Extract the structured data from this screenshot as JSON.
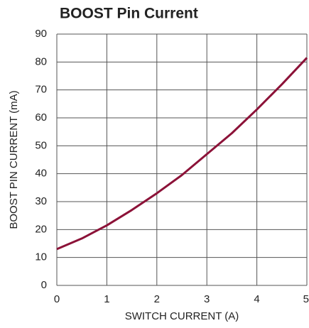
{
  "chart_data": {
    "type": "line",
    "title": "BOOST Pin Current",
    "xlabel": "SWITCH CURRENT (A)",
    "ylabel": "BOOST PIN CURRENT (mA)",
    "x": [
      0,
      0.5,
      1,
      1.5,
      2,
      2.5,
      3,
      3.5,
      4,
      4.5,
      5
    ],
    "series": [
      {
        "color": "#8c1238",
        "values": [
          13,
          16.8,
          21.5,
          27,
          33,
          39.5,
          47,
          54.5,
          63,
          72,
          81.5
        ]
      }
    ],
    "xlim": [
      0,
      5
    ],
    "xticks": [
      0,
      1,
      2,
      3,
      4,
      5
    ],
    "ylim": [
      0,
      90
    ],
    "yticks": [
      0,
      10,
      20,
      30,
      40,
      50,
      60,
      70,
      80,
      90
    ],
    "grid": true
  }
}
